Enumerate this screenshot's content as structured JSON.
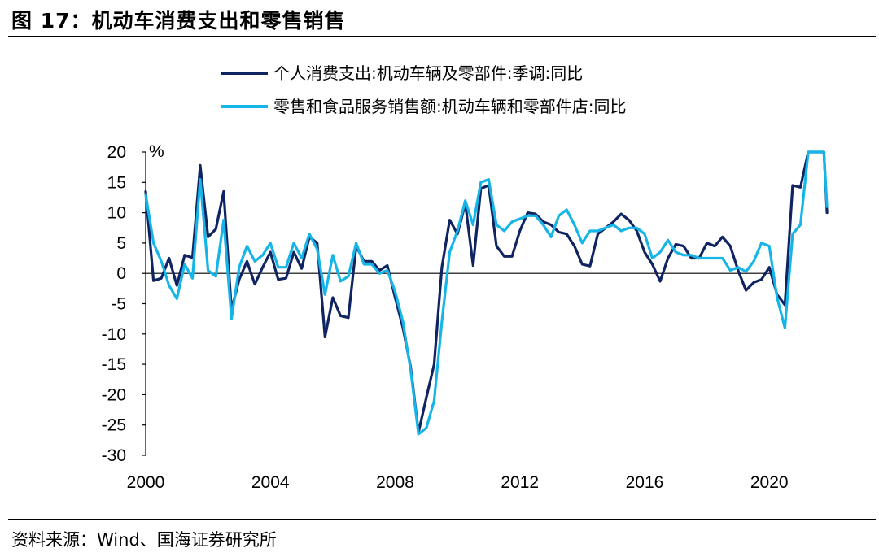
{
  "figure": {
    "title": "图 17：机动车消费支出和零售销售",
    "source": "资料来源：Wind、国海证券研究所"
  },
  "chart_data": {
    "type": "line",
    "yunit": "%",
    "ylim": [
      -30,
      20
    ],
    "yticks": [
      20,
      15,
      10,
      5,
      0,
      -5,
      -10,
      -15,
      -20,
      -25,
      -30
    ],
    "xlim": [
      2000,
      2021.9
    ],
    "xticks": [
      2000,
      2004,
      2008,
      2012,
      2016,
      2020
    ],
    "legend_position": "top",
    "series": [
      {
        "name": "个人消费支出:机动车辆及零部件:季调:同比",
        "color": "#0f2461",
        "points": [
          [
            2000.0,
            13.5
          ],
          [
            2000.25,
            -1.2
          ],
          [
            2000.5,
            -0.8
          ],
          [
            2000.75,
            2.5
          ],
          [
            2001.0,
            -2.0
          ],
          [
            2001.25,
            3.0
          ],
          [
            2001.5,
            2.6
          ],
          [
            2001.75,
            17.8
          ],
          [
            2002.0,
            6.0
          ],
          [
            2002.25,
            7.3
          ],
          [
            2002.5,
            13.5
          ],
          [
            2002.75,
            -6.0
          ],
          [
            2003.0,
            -1.0
          ],
          [
            2003.25,
            2.0
          ],
          [
            2003.5,
            -1.8
          ],
          [
            2003.75,
            1.0
          ],
          [
            2004.0,
            3.5
          ],
          [
            2004.25,
            -1.0
          ],
          [
            2004.5,
            -0.8
          ],
          [
            2004.75,
            3.5
          ],
          [
            2005.0,
            0.8
          ],
          [
            2005.25,
            6.0
          ],
          [
            2005.5,
            5.0
          ],
          [
            2005.75,
            -10.5
          ],
          [
            2006.0,
            -4.0
          ],
          [
            2006.25,
            -7.0
          ],
          [
            2006.5,
            -7.3
          ],
          [
            2006.75,
            4.5
          ],
          [
            2007.0,
            2.0
          ],
          [
            2007.25,
            2.0
          ],
          [
            2007.5,
            0.5
          ],
          [
            2007.75,
            1.3
          ],
          [
            2008.0,
            -4.0
          ],
          [
            2008.25,
            -9.0
          ],
          [
            2008.5,
            -15.5
          ],
          [
            2008.75,
            -26.2
          ],
          [
            2009.0,
            -20.5
          ],
          [
            2009.25,
            -15.0
          ],
          [
            2009.5,
            1.0
          ],
          [
            2009.75,
            8.8
          ],
          [
            2010.0,
            6.5
          ],
          [
            2010.25,
            11.5
          ],
          [
            2010.5,
            1.3
          ],
          [
            2010.75,
            14.0
          ],
          [
            2011.0,
            14.5
          ],
          [
            2011.25,
            4.5
          ],
          [
            2011.5,
            2.8
          ],
          [
            2011.75,
            2.8
          ],
          [
            2012.0,
            7.0
          ],
          [
            2012.25,
            10.0
          ],
          [
            2012.5,
            9.8
          ],
          [
            2012.75,
            8.5
          ],
          [
            2013.0,
            8.0
          ],
          [
            2013.25,
            6.8
          ],
          [
            2013.5,
            6.5
          ],
          [
            2013.75,
            4.5
          ],
          [
            2014.0,
            1.5
          ],
          [
            2014.25,
            1.2
          ],
          [
            2014.5,
            6.5
          ],
          [
            2014.75,
            7.5
          ],
          [
            2015.0,
            8.5
          ],
          [
            2015.25,
            9.8
          ],
          [
            2015.5,
            8.8
          ],
          [
            2015.75,
            7.0
          ],
          [
            2016.0,
            3.5
          ],
          [
            2016.25,
            1.5
          ],
          [
            2016.5,
            -1.3
          ],
          [
            2016.75,
            2.5
          ],
          [
            2017.0,
            4.8
          ],
          [
            2017.25,
            4.5
          ],
          [
            2017.5,
            2.5
          ],
          [
            2017.75,
            2.5
          ],
          [
            2018.0,
            5.0
          ],
          [
            2018.25,
            4.5
          ],
          [
            2018.5,
            6.0
          ],
          [
            2018.75,
            4.5
          ],
          [
            2019.0,
            0.5
          ],
          [
            2019.25,
            -2.8
          ],
          [
            2019.5,
            -1.5
          ],
          [
            2019.75,
            -1.0
          ],
          [
            2020.0,
            1.0
          ],
          [
            2020.25,
            -3.5
          ],
          [
            2020.5,
            -5.2
          ],
          [
            2020.75,
            14.5
          ],
          [
            2021.0,
            14.2
          ],
          [
            2021.25,
            20.0
          ],
          [
            2021.5,
            20.0
          ],
          [
            2021.75,
            20.0
          ],
          [
            2021.85,
            10.0
          ]
        ]
      },
      {
        "name": "零售和食品服务销售额:机动车辆和零部件店:同比",
        "color": "#16b5e8",
        "points": [
          [
            2000.0,
            13.0
          ],
          [
            2000.25,
            5.0
          ],
          [
            2000.5,
            2.0
          ],
          [
            2000.75,
            -2.0
          ],
          [
            2001.0,
            -4.2
          ],
          [
            2001.25,
            1.5
          ],
          [
            2001.5,
            -0.8
          ],
          [
            2001.75,
            15.5
          ],
          [
            2002.0,
            0.5
          ],
          [
            2002.25,
            -0.5
          ],
          [
            2002.5,
            8.8
          ],
          [
            2002.75,
            -7.5
          ],
          [
            2003.0,
            1.0
          ],
          [
            2003.25,
            4.5
          ],
          [
            2003.5,
            2.0
          ],
          [
            2003.75,
            3.0
          ],
          [
            2004.0,
            5.0
          ],
          [
            2004.25,
            1.0
          ],
          [
            2004.5,
            1.0
          ],
          [
            2004.75,
            5.0
          ],
          [
            2005.0,
            2.5
          ],
          [
            2005.25,
            6.5
          ],
          [
            2005.5,
            4.0
          ],
          [
            2005.75,
            -3.5
          ],
          [
            2006.0,
            3.0
          ],
          [
            2006.25,
            -1.3
          ],
          [
            2006.5,
            -0.5
          ],
          [
            2006.75,
            5.0
          ],
          [
            2007.0,
            1.5
          ],
          [
            2007.25,
            1.5
          ],
          [
            2007.5,
            0.0
          ],
          [
            2007.75,
            0.5
          ],
          [
            2008.0,
            -3.0
          ],
          [
            2008.25,
            -8.0
          ],
          [
            2008.5,
            -16.0
          ],
          [
            2008.75,
            -26.5
          ],
          [
            2009.0,
            -25.5
          ],
          [
            2009.25,
            -21.0
          ],
          [
            2009.5,
            -8.0
          ],
          [
            2009.75,
            3.5
          ],
          [
            2010.0,
            7.0
          ],
          [
            2010.25,
            12.0
          ],
          [
            2010.5,
            8.0
          ],
          [
            2010.75,
            15.0
          ],
          [
            2011.0,
            15.5
          ],
          [
            2011.25,
            8.0
          ],
          [
            2011.5,
            7.0
          ],
          [
            2011.75,
            8.5
          ],
          [
            2012.0,
            9.0
          ],
          [
            2012.25,
            9.5
          ],
          [
            2012.5,
            9.5
          ],
          [
            2012.75,
            8.0
          ],
          [
            2013.0,
            6.0
          ],
          [
            2013.25,
            9.5
          ],
          [
            2013.5,
            10.5
          ],
          [
            2013.75,
            8.0
          ],
          [
            2014.0,
            5.0
          ],
          [
            2014.25,
            7.0
          ],
          [
            2014.5,
            7.0
          ],
          [
            2014.75,
            7.5
          ],
          [
            2015.0,
            8.0
          ],
          [
            2015.25,
            7.0
          ],
          [
            2015.5,
            7.5
          ],
          [
            2015.75,
            7.5
          ],
          [
            2016.0,
            6.5
          ],
          [
            2016.25,
            2.5
          ],
          [
            2016.5,
            3.5
          ],
          [
            2016.75,
            5.5
          ],
          [
            2017.0,
            3.5
          ],
          [
            2017.25,
            3.0
          ],
          [
            2017.5,
            3.0
          ],
          [
            2017.75,
            2.5
          ],
          [
            2018.0,
            2.5
          ],
          [
            2018.25,
            2.5
          ],
          [
            2018.5,
            2.5
          ],
          [
            2018.75,
            0.5
          ],
          [
            2019.0,
            1.0
          ],
          [
            2019.25,
            0.3
          ],
          [
            2019.5,
            2.0
          ],
          [
            2019.75,
            5.0
          ],
          [
            2020.0,
            4.5
          ],
          [
            2020.25,
            -4.0
          ],
          [
            2020.5,
            -9.0
          ],
          [
            2020.75,
            6.5
          ],
          [
            2021.0,
            8.0
          ],
          [
            2021.25,
            20.0
          ],
          [
            2021.5,
            20.0
          ],
          [
            2021.75,
            20.0
          ],
          [
            2021.85,
            11.0
          ]
        ]
      }
    ]
  }
}
